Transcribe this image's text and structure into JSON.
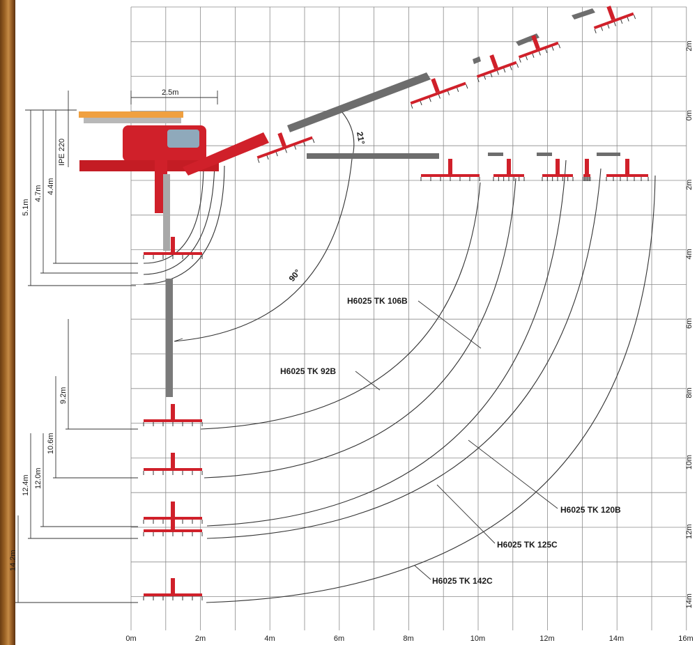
{
  "diagram": {
    "x_axis_ticks": [
      "0m",
      "2m",
      "4m",
      "6m",
      "8m",
      "10m",
      "12m",
      "14m",
      "16m"
    ],
    "y_axis_ticks": [
      "2m",
      "0m",
      "2m",
      "4m",
      "6m",
      "8m",
      "10m",
      "12m",
      "14m"
    ],
    "models": [
      "H6025 TK 106B",
      "H6025 TK 92B",
      "H6025 TK 120B",
      "H6025 TK 125C",
      "H6025 TK 142C"
    ],
    "beam_label": "IPE 220",
    "width_label": "2.5m",
    "depth_labels": [
      "5.1m",
      "4.7m",
      "4.4m",
      "9.2m",
      "10.6m",
      "12.4m",
      "12.0m",
      "14.2m"
    ],
    "angle_labels": [
      "21°",
      "90°"
    ],
    "colors": {
      "grid": "#8a8a8a",
      "arc": "#333333",
      "red": "#d0202a",
      "grey": "#6d6d6d",
      "orange": "#f0a040"
    }
  }
}
